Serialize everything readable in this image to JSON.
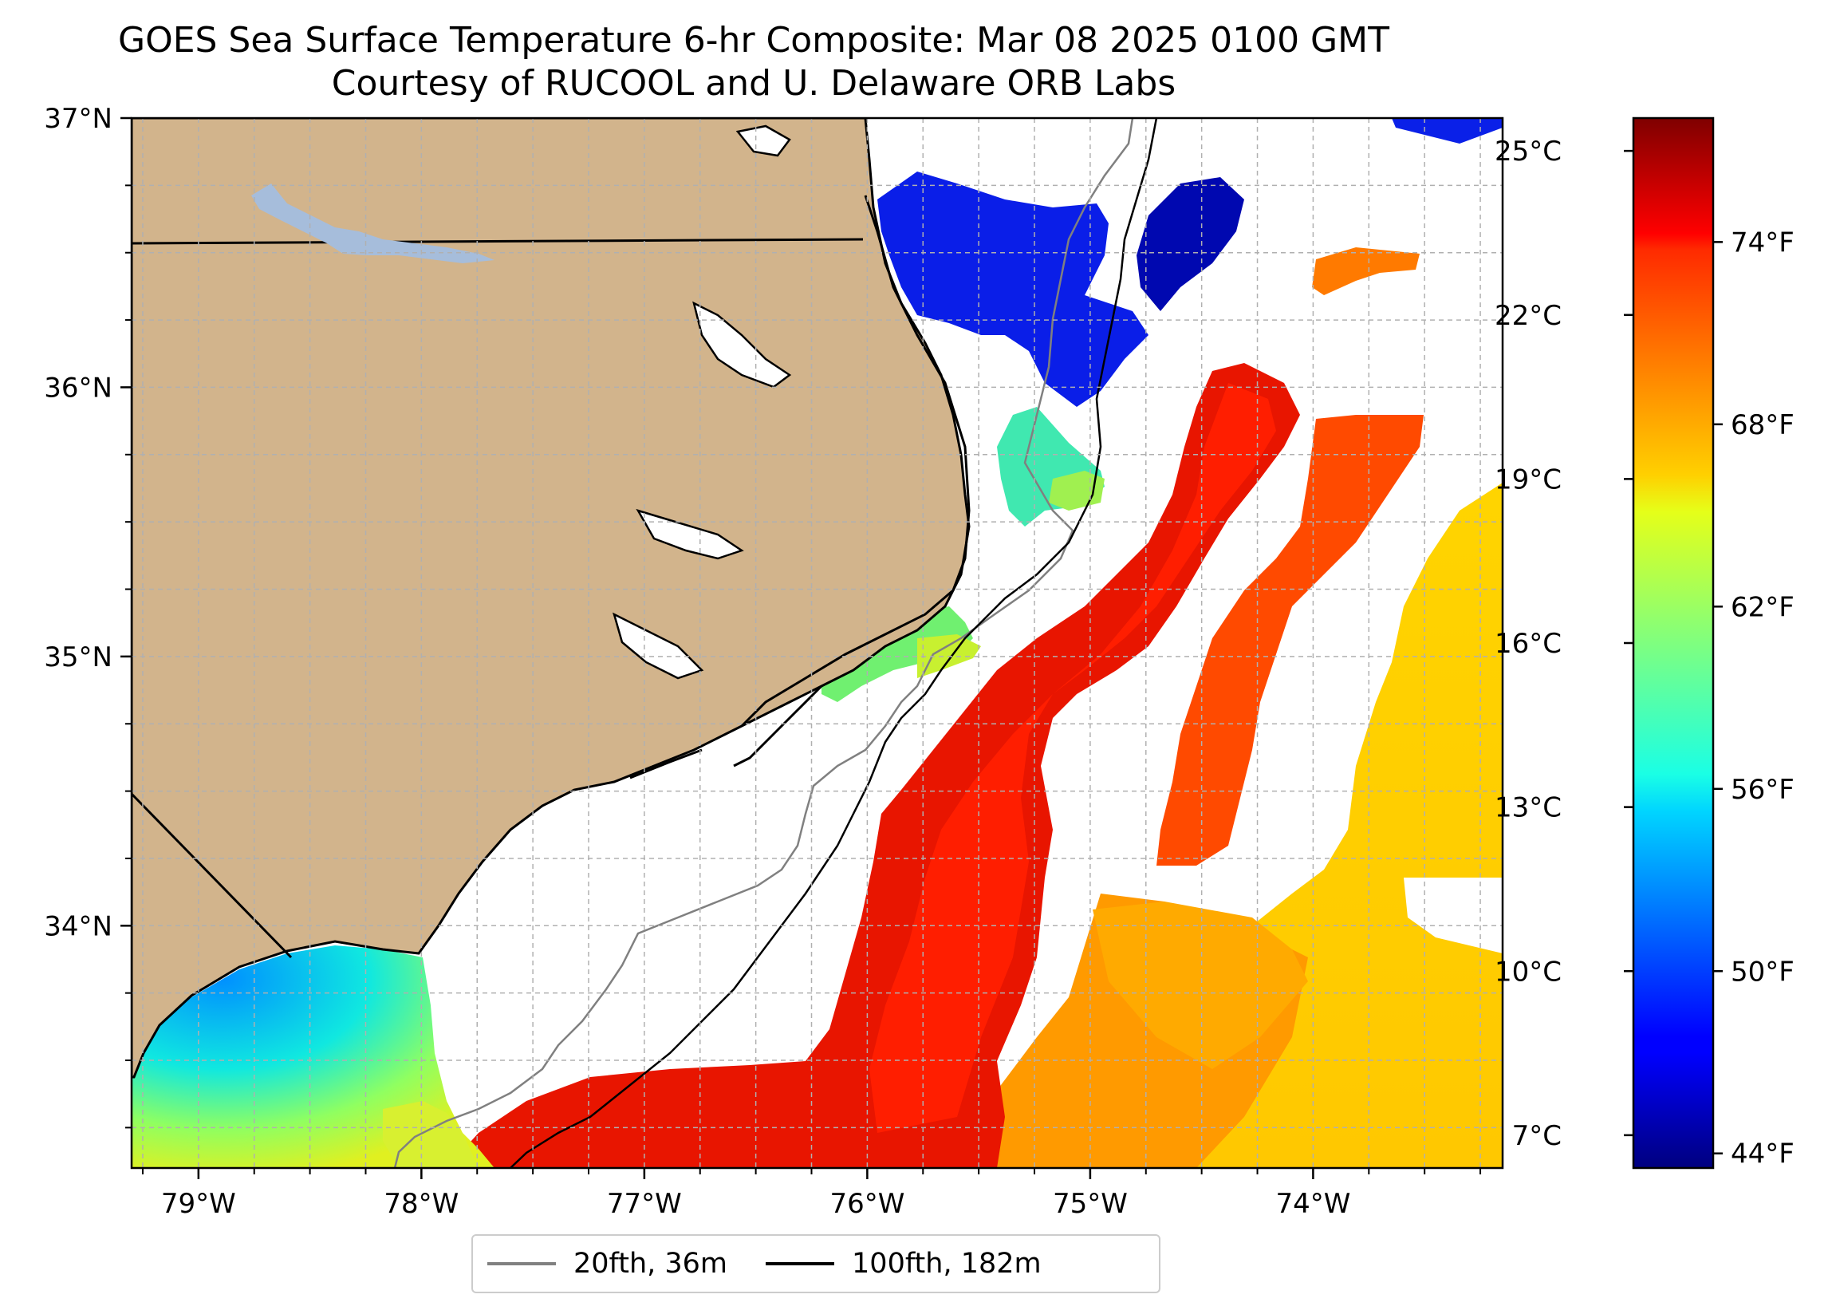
{
  "title": {
    "line1": "GOES Sea Surface Temperature 6-hr Composite: Mar 08 2025 0100 GMT",
    "line2": "Courtesy of RUCOOL and U. Delaware ORB Labs"
  },
  "map": {
    "lon_range": [
      -79.3,
      -73.15
    ],
    "lat_range": [
      33.1,
      37.0
    ],
    "lon_ticks": [
      {
        "value": -79,
        "label": "79°W"
      },
      {
        "value": -78,
        "label": "78°W"
      },
      {
        "value": -77,
        "label": "77°W"
      },
      {
        "value": -76,
        "label": "76°W"
      },
      {
        "value": -75,
        "label": "75°W"
      },
      {
        "value": -74,
        "label": "74°W"
      }
    ],
    "lat_ticks": [
      {
        "value": 37,
        "label": "37°N"
      },
      {
        "value": 36,
        "label": "36°N"
      },
      {
        "value": 35,
        "label": "35°N"
      },
      {
        "value": 34,
        "label": "34°N"
      }
    ],
    "grid": true,
    "land_color": "#d2b48c",
    "lake_color": "#a6bddb"
  },
  "colorbar": {
    "celsius_labels": [
      {
        "value": 25,
        "label": "25°C"
      },
      {
        "value": 22,
        "label": "22°C"
      },
      {
        "value": 19,
        "label": "19°C"
      },
      {
        "value": 16,
        "label": "16°C"
      },
      {
        "value": 13,
        "label": "13°C"
      },
      {
        "value": 10,
        "label": "10°C"
      },
      {
        "value": 7,
        "label": "7°C"
      }
    ],
    "fahrenheit_labels": [
      {
        "value": 74,
        "label": "74°F"
      },
      {
        "value": 68,
        "label": "68°F"
      },
      {
        "value": 62,
        "label": "62°F"
      },
      {
        "value": 56,
        "label": "56°F"
      },
      {
        "value": 50,
        "label": "50°F"
      },
      {
        "value": 44,
        "label": "44°F"
      }
    ],
    "min_c": 6.4,
    "max_c": 25.6
  },
  "legend": {
    "entries": [
      {
        "label": "20fth, 36m",
        "color": "#808080"
      },
      {
        "label": "100fth, 182m",
        "color": "#000000"
      }
    ]
  }
}
